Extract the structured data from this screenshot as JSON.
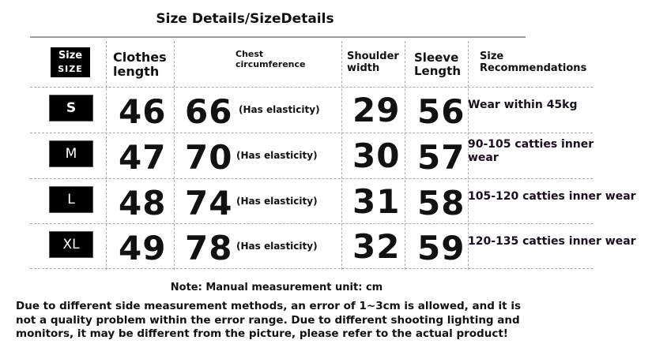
{
  "title": "Size Details/SizeDetails",
  "headers": {
    "size": "Size",
    "size_caps": "SIZE",
    "length": "Clothes length",
    "chest": "Chest circumference",
    "shoulder": "Shoulder width",
    "sleeve": "Sleeve Length",
    "recommend": "Size Recommendations"
  },
  "rows": [
    {
      "size": "S",
      "length": "46",
      "chest": "66",
      "chest_note": "(Has elasticity)",
      "shoulder": "29",
      "sleeve": "56",
      "recommend": "Wear within 45kg"
    },
    {
      "size": "M",
      "length": "47",
      "chest": "70",
      "chest_note": "(Has elasticity)",
      "shoulder": "30",
      "sleeve": "57",
      "recommend": "90-105 catties inner wear"
    },
    {
      "size": "L",
      "length": "48",
      "chest": "74",
      "chest_note": "(Has elasticity)",
      "shoulder": "31",
      "sleeve": "58",
      "recommend": "105-120 catties inner wear"
    },
    {
      "size": "XL",
      "length": "49",
      "chest": "78",
      "chest_note": "(Has elasticity)",
      "shoulder": "32",
      "sleeve": "59",
      "recommend": "120-135 catties inner wear"
    }
  ],
  "note": "Note: Manual measurement unit: cm",
  "description": "Due to different side measurement methods, an error of 1~3cm is allowed, and it is not a quality problem within the error range. Due to different shooting lighting and monitors, it may be different from the picture, please refer to the actual product!"
}
